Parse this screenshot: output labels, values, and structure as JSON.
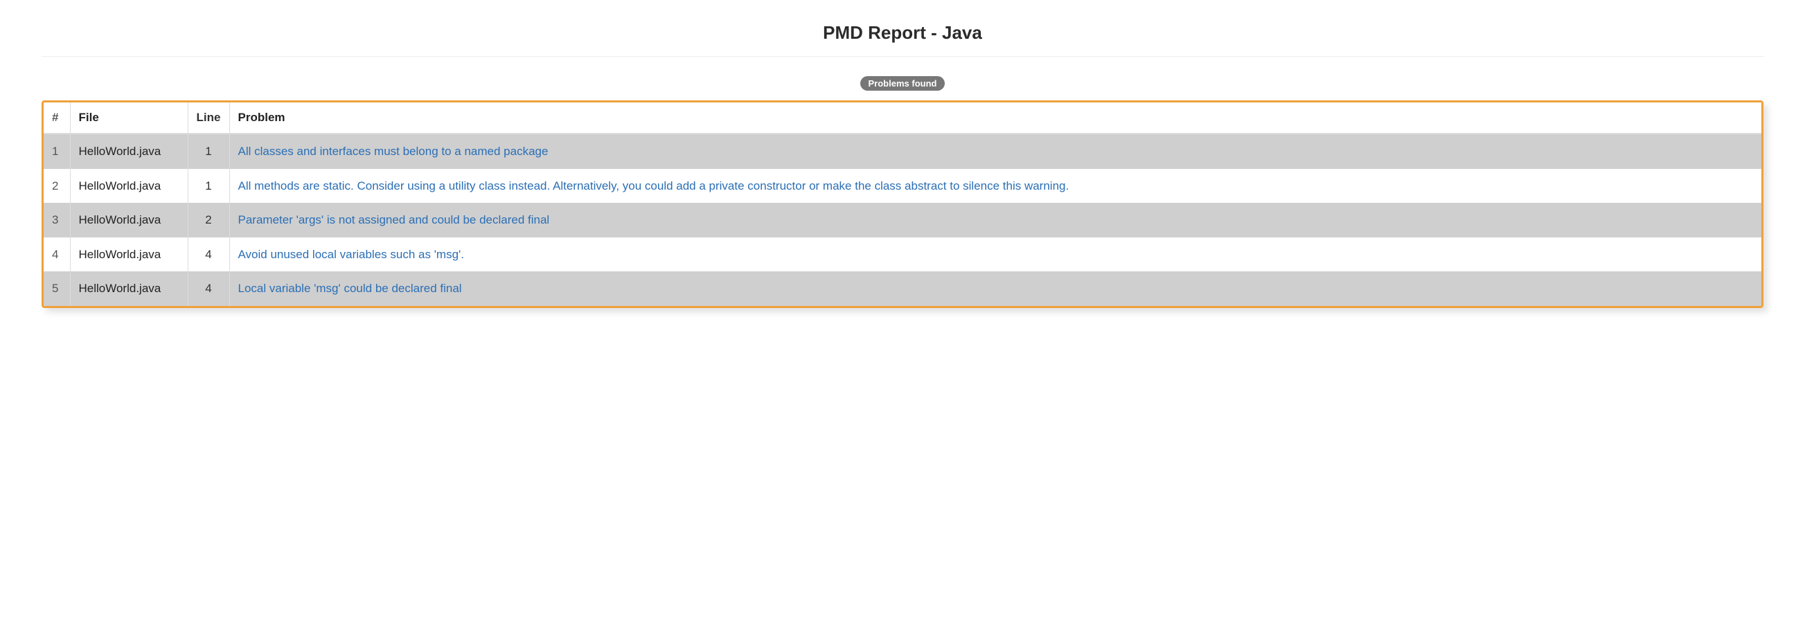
{
  "title": "PMD Report - Java",
  "badge": "Problems found",
  "columns": {
    "num": "#",
    "file": "File",
    "line": "Line",
    "problem": "Problem"
  },
  "rows": [
    {
      "num": "1",
      "file": "HelloWorld.java",
      "line": "1",
      "problem": "All classes and interfaces must belong to a named package"
    },
    {
      "num": "2",
      "file": "HelloWorld.java",
      "line": "1",
      "problem": "All methods are static. Consider using a utility class instead. Alternatively, you could add a private constructor or make the class abstract to silence this warning."
    },
    {
      "num": "3",
      "file": "HelloWorld.java",
      "line": "2",
      "problem": "Parameter 'args' is not assigned and could be declared final"
    },
    {
      "num": "4",
      "file": "HelloWorld.java",
      "line": "4",
      "problem": "Avoid unused local variables such as 'msg'."
    },
    {
      "num": "5",
      "file": "HelloWorld.java",
      "line": "4",
      "problem": "Local variable 'msg' could be declared final"
    }
  ],
  "styling": {
    "border_color": "#efa139",
    "odd_row_bg": "#cfcfcf",
    "even_row_bg": "#ffffff",
    "link_color": "#2b6fb5",
    "badge_bg": "#777777",
    "badge_fg": "#ffffff",
    "header_rule_color": "#eeeeee",
    "divider_color": "#dddddd",
    "title_fontsize": 26,
    "body_fontsize": 17,
    "badge_fontsize": 13
  }
}
